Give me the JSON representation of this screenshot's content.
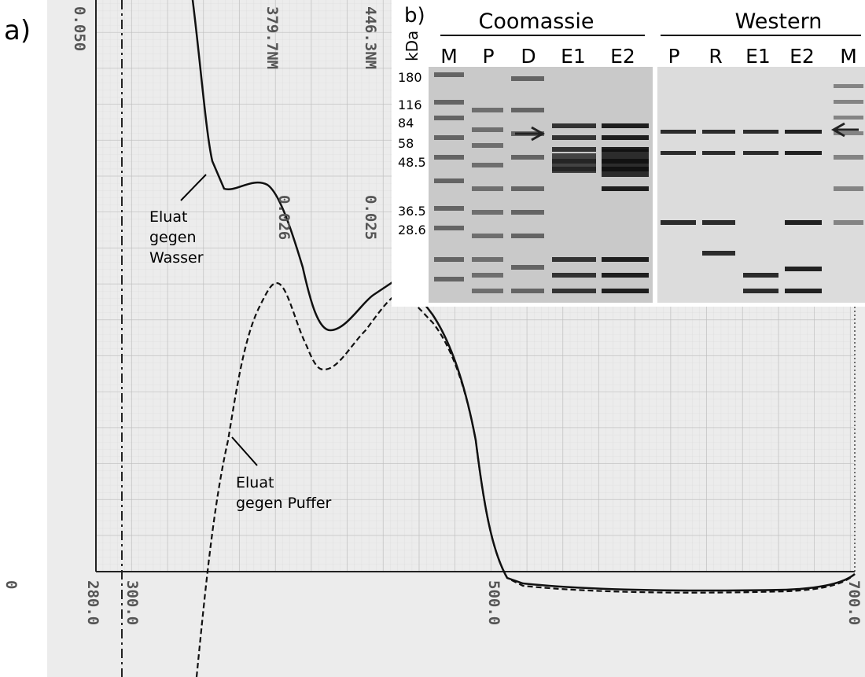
{
  "panel_a": {
    "label": "a)",
    "recorder_labels": [
      "0.050",
      "379.7NM",
      "446.3NM",
      "0.026",
      "0.025",
      "0",
      "280.0",
      "300.0",
      "500.0",
      "700.0"
    ],
    "annotations": [
      [
        "Eluat",
        "gegen",
        "Wasser"
      ],
      [
        "Eluat",
        "gegen Puffer"
      ]
    ]
  },
  "panel_b": {
    "label": "b)",
    "unit": "kDa",
    "markers": [
      "180",
      "116",
      "84",
      "58",
      "48.5",
      "36.5",
      "28.6"
    ],
    "groups": [
      {
        "title": "Coomassie",
        "lanes": [
          "M",
          "P",
          "D",
          "E1",
          "E2"
        ]
      },
      {
        "title": "Western",
        "lanes": [
          "P",
          "R",
          "E1",
          "E2",
          "M"
        ]
      }
    ]
  }
}
